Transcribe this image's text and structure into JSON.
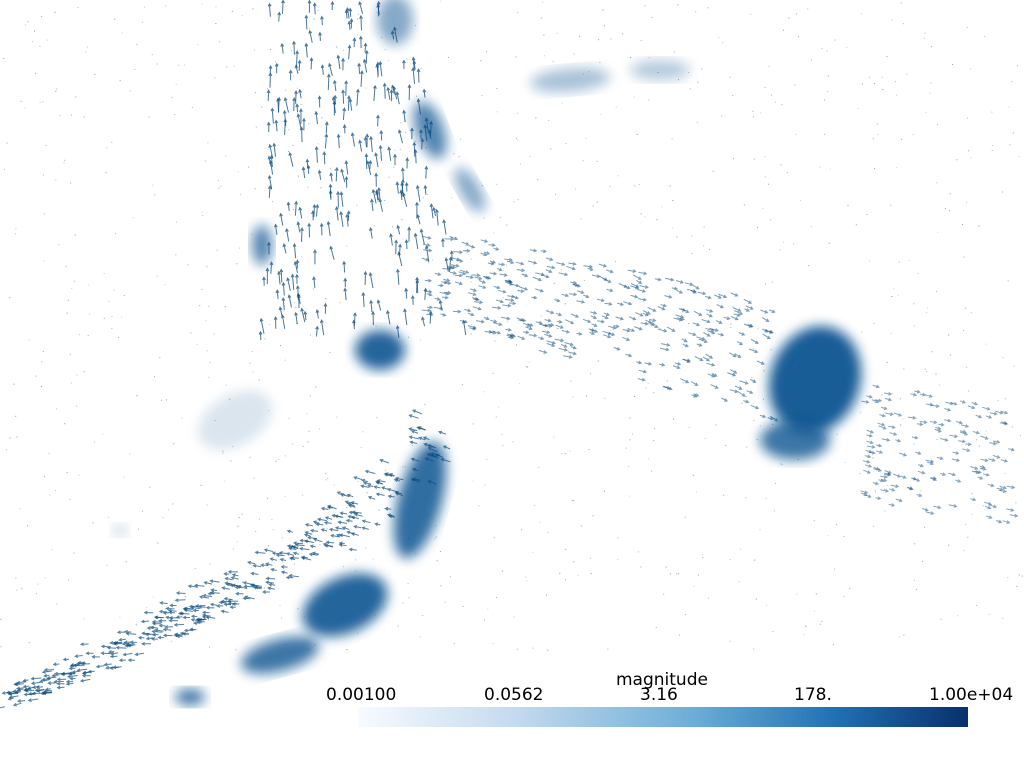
{
  "scene": {
    "background": "#ffffff",
    "glyph_color": "#0b4a7e",
    "dense_color": "#0d5592",
    "light_color": "#8fb4d4",
    "glyph_type": "arrow",
    "description_tags": [
      "vector-field-icon",
      "arrow-glyphs"
    ]
  },
  "scalar_bar": {
    "title": "magnitude",
    "ticks": [
      "0.00100",
      "0.0562",
      "3.16",
      "178.",
      "1.00e+04"
    ],
    "colormap": "Blues",
    "color_min": "#f7fbff",
    "color_mid": "#6baed6",
    "color_max": "#08306b",
    "scale": "log",
    "range": [
      0.001,
      10000
    ]
  }
}
